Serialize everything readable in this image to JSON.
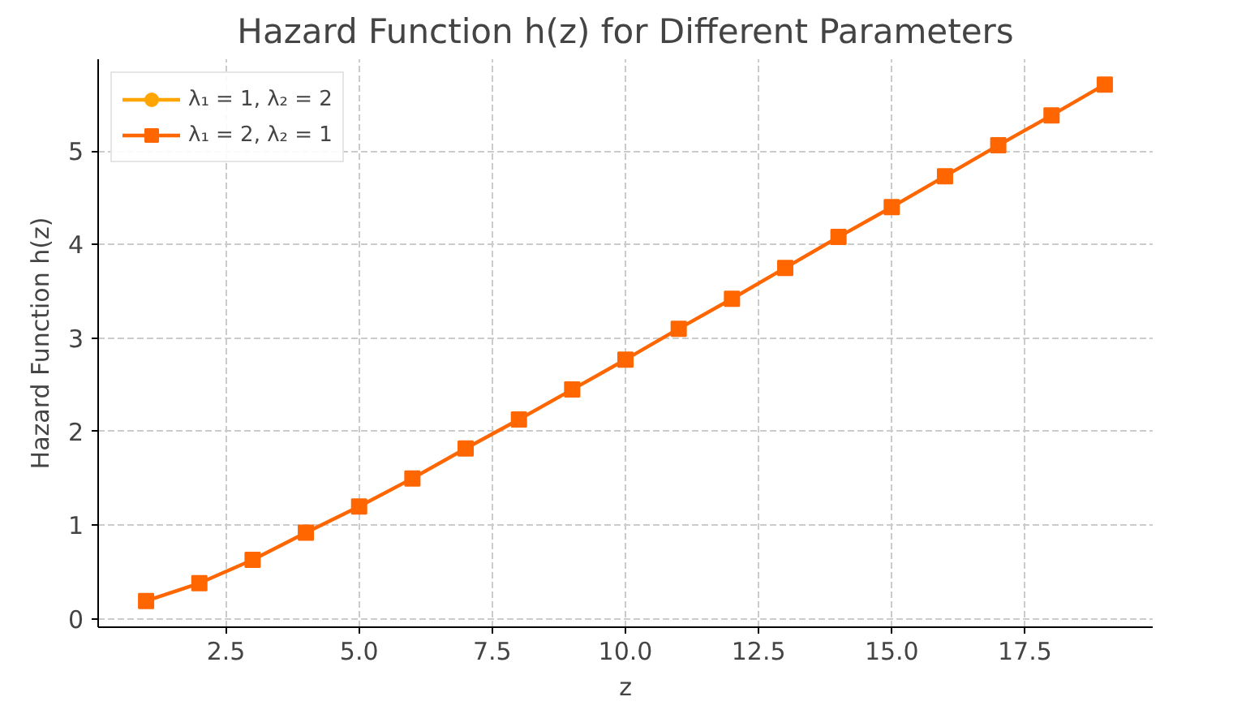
{
  "chart_data": {
    "type": "line",
    "title": "Hazard Function h(z) for Different Parameters",
    "xlabel": "z",
    "ylabel": "Hazard Function h(z)",
    "x": [
      1,
      2,
      3,
      4,
      5,
      6,
      7,
      8,
      9,
      10,
      11,
      12,
      13,
      14,
      15,
      16,
      17,
      18,
      19
    ],
    "series": [
      {
        "name": "λ₁ = 1, λ₂ = 2",
        "color": "#ffa500",
        "marker": "circle",
        "values": [
          null,
          null,
          null,
          null,
          null,
          null,
          null,
          null,
          null,
          null,
          null,
          null,
          null,
          null,
          null,
          null,
          null,
          null,
          null
        ]
      },
      {
        "name": "λ₁ = 2, λ₂ = 1",
        "color": "#ff6600",
        "marker": "square",
        "values": [
          0.19,
          0.38,
          0.63,
          0.92,
          1.2,
          1.5,
          1.82,
          2.13,
          2.45,
          2.77,
          3.1,
          3.42,
          3.75,
          4.08,
          4.4,
          4.73,
          5.06,
          5.38,
          5.71
        ]
      }
    ],
    "xlim": [
      0.1,
      19.9
    ],
    "ylim": [
      -0.09,
      5.98
    ],
    "xticks": [
      {
        "value": 2.5,
        "label": "2.5"
      },
      {
        "value": 5,
        "label": "5.0"
      },
      {
        "value": 7.5,
        "label": "7.5"
      },
      {
        "value": 10,
        "label": "10.0"
      },
      {
        "value": 12.5,
        "label": "12.5"
      },
      {
        "value": 15,
        "label": "15.0"
      },
      {
        "value": 17.5,
        "label": "17.5"
      }
    ],
    "yticks": [
      0,
      1,
      2,
      3,
      4,
      5
    ],
    "grid": true,
    "legend": "top left",
    "line_style": "solid"
  }
}
